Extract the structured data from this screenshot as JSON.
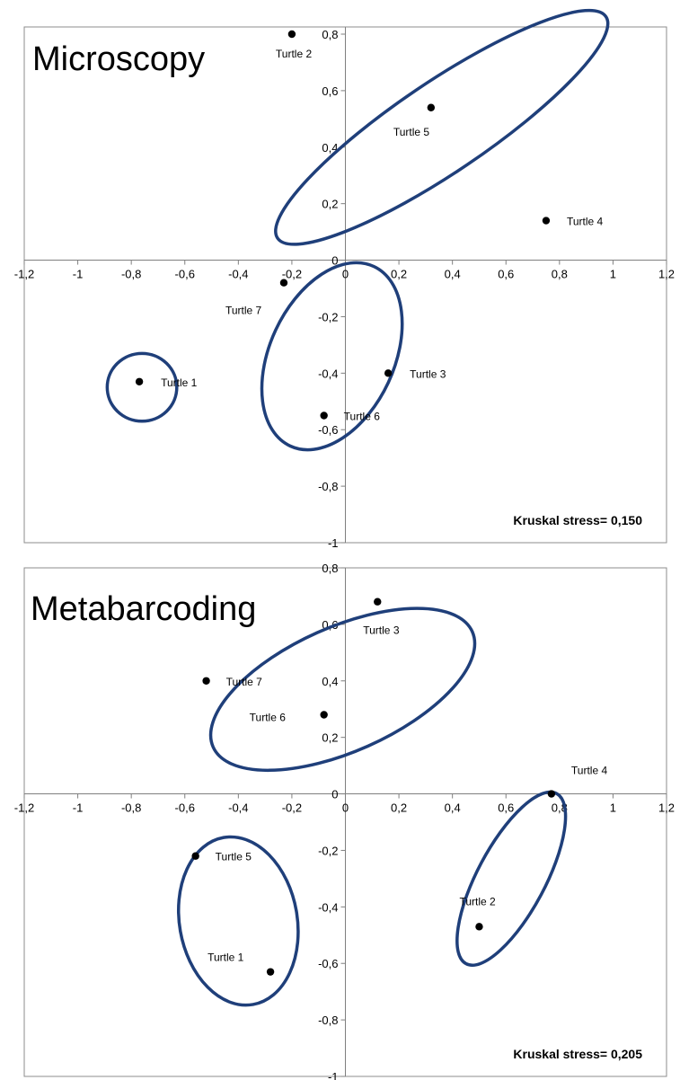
{
  "chart_data": [
    {
      "type": "scatter",
      "title": "Microscopy",
      "xlim": [
        -1.2,
        1.2
      ],
      "ylim": [
        -1,
        0.8
      ],
      "xticks": [
        "-1,2",
        "-1",
        "-0,8",
        "-0,6",
        "-0,4",
        "-0,2",
        "0",
        "0,2",
        "0,4",
        "0,6",
        "0,8",
        "1",
        "1,2"
      ],
      "yticks": [
        "-1",
        "-0,8",
        "-0,6",
        "-0,4",
        "-0,2",
        "0",
        "0,2",
        "0,4",
        "0,6",
        "0,8"
      ],
      "xtick_values": [
        -1.2,
        -1,
        -0.8,
        -0.6,
        -0.4,
        -0.2,
        0,
        0.2,
        0.4,
        0.6,
        0.8,
        1,
        1.2
      ],
      "ytick_values": [
        -1,
        -0.8,
        -0.6,
        -0.4,
        -0.2,
        0,
        0.2,
        0.4,
        0.6,
        0.8
      ],
      "grid": false,
      "stress": "Kruskal stress= 0,150",
      "points": [
        {
          "label": "Turtle 1",
          "x": -0.77,
          "y": -0.43
        },
        {
          "label": "Turtle 2",
          "x": -0.2,
          "y": 0.8
        },
        {
          "label": "Turtle 3",
          "x": 0.16,
          "y": -0.4
        },
        {
          "label": "Turtle 4",
          "x": 0.75,
          "y": 0.14
        },
        {
          "label": "Turtle 5",
          "x": 0.32,
          "y": 0.54
        },
        {
          "label": "Turtle 6",
          "x": -0.08,
          "y": -0.55
        },
        {
          "label": "Turtle 7",
          "x": -0.23,
          "y": -0.08
        }
      ],
      "groups": [
        {
          "members": [
            "Turtle 2",
            "Turtle 5",
            "Turtle 4"
          ],
          "cx": 0.36,
          "cy": 0.47,
          "rx": 0.74,
          "ry": 0.16,
          "angle_deg": 34
        },
        {
          "members": [
            "Turtle 7",
            "Turtle 3",
            "Turtle 6"
          ],
          "cx": -0.05,
          "cy": -0.34,
          "rx": 0.37,
          "ry": 0.22,
          "angle_deg": 65
        },
        {
          "members": [
            "Turtle 1"
          ],
          "cx": -0.76,
          "cy": -0.45,
          "rx": 0.13,
          "ry": 0.12,
          "angle_deg": 0
        }
      ]
    },
    {
      "type": "scatter",
      "title": "Metabarcoding",
      "xlim": [
        -1.2,
        1.2
      ],
      "ylim": [
        -1,
        0.8
      ],
      "xticks": [
        "-1,2",
        "-1",
        "-0,8",
        "-0,6",
        "-0,4",
        "-0,2",
        "0",
        "0,2",
        "0,4",
        "0,6",
        "0,8",
        "1",
        "1,2"
      ],
      "yticks": [
        "-1",
        "-0,8",
        "-0,6",
        "-0,4",
        "-0,2",
        "0",
        "0,2",
        "0,4",
        "0,6",
        "0,8"
      ],
      "xtick_values": [
        -1.2,
        -1,
        -0.8,
        -0.6,
        -0.4,
        -0.2,
        0,
        0.2,
        0.4,
        0.6,
        0.8,
        1,
        1.2
      ],
      "ytick_values": [
        -1,
        -0.8,
        -0.6,
        -0.4,
        -0.2,
        0,
        0.2,
        0.4,
        0.6,
        0.8
      ],
      "grid": false,
      "stress": "Kruskal stress= 0,205",
      "points": [
        {
          "label": "Turtle 1",
          "x": -0.28,
          "y": -0.63
        },
        {
          "label": "Turtle 2",
          "x": 0.5,
          "y": -0.47
        },
        {
          "label": "Turtle 3",
          "x": 0.12,
          "y": 0.68
        },
        {
          "label": "Turtle 4",
          "x": 0.77,
          "y": 0.0
        },
        {
          "label": "Turtle 5",
          "x": -0.56,
          "y": -0.22
        },
        {
          "label": "Turtle 6",
          "x": -0.08,
          "y": 0.28
        },
        {
          "label": "Turtle 7",
          "x": -0.52,
          "y": 0.4
        }
      ],
      "groups": [
        {
          "members": [
            "Turtle 7",
            "Turtle 6",
            "Turtle 3"
          ],
          "cx": -0.01,
          "cy": 0.37,
          "rx": 0.53,
          "ry": 0.22,
          "angle_deg": 24
        },
        {
          "members": [
            "Turtle 4",
            "Turtle 2"
          ],
          "cx": 0.62,
          "cy": -0.3,
          "rx": 0.36,
          "ry": 0.12,
          "angle_deg": 62
        },
        {
          "members": [
            "Turtle 5",
            "Turtle 1"
          ],
          "cx": -0.4,
          "cy": -0.45,
          "rx": 0.22,
          "ry": 0.3,
          "angle_deg": 10
        }
      ]
    }
  ]
}
